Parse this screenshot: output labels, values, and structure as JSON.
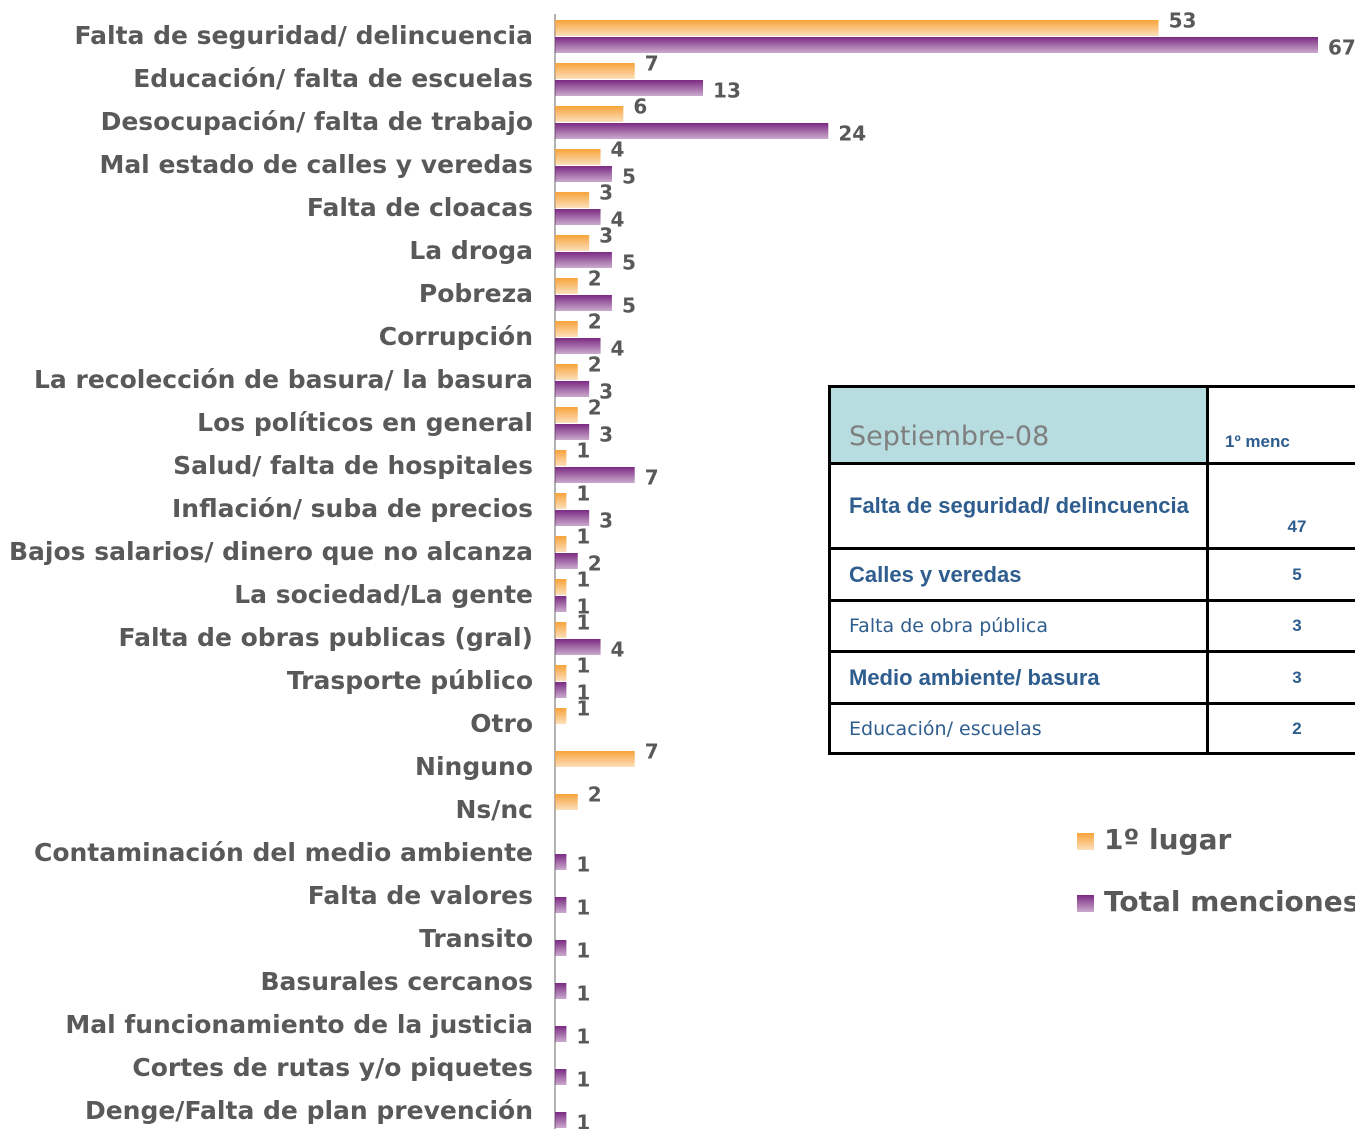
{
  "chart_data": {
    "type": "hbar",
    "categories": [
      "Falta de seguridad/ delincuencia",
      "Educación/ falta de escuelas",
      "Desocupación/ falta de trabajo",
      "Mal estado de calles y veredas",
      "Falta de cloacas",
      "La droga",
      "Pobreza",
      "Corrupción",
      "La recolección de basura/ la basura",
      "Los políticos en general",
      "Salud/ falta de hospitales",
      "Inflación/ suba de precios",
      "Bajos salarios/ dinero que no alcanza",
      "La sociedad/La gente",
      "Falta de obras publicas (gral)",
      "Trasporte público",
      "Otro",
      "Ninguno",
      "Ns/nc",
      "Contaminación del medio ambiente",
      "Falta de valores",
      "Transito",
      "Basurales cercanos",
      "Mal funcionamiento de la justicia",
      "Cortes de rutas y/o piquetes",
      "Denge/Falta de plan prevención"
    ],
    "series": [
      {
        "name": "1º lugar",
        "color": "#f7a33a",
        "values": [
          53,
          7,
          6,
          4,
          3,
          3,
          2,
          2,
          2,
          2,
          1,
          1,
          1,
          1,
          1,
          1,
          1,
          7,
          2,
          null,
          null,
          null,
          null,
          null,
          null,
          null
        ]
      },
      {
        "name": "Total menciones",
        "color": "#7b2a82",
        "values": [
          67,
          13,
          24,
          5,
          4,
          5,
          5,
          4,
          3,
          3,
          7,
          3,
          2,
          1,
          4,
          1,
          null,
          null,
          null,
          1,
          1,
          1,
          1,
          1,
          1,
          1
        ]
      }
    ],
    "xlim": [
      0,
      67
    ]
  },
  "table": {
    "header": [
      "Septiembre-08",
      "1º menc"
    ],
    "rows": [
      [
        "Falta de seguridad/ delincuencia",
        "47"
      ],
      [
        "Calles y veredas",
        "5"
      ],
      [
        "Falta de obra pública",
        "3"
      ],
      [
        "Medio ambiente/ basura",
        "3"
      ],
      [
        "Educación/ escuelas",
        "2"
      ]
    ]
  }
}
